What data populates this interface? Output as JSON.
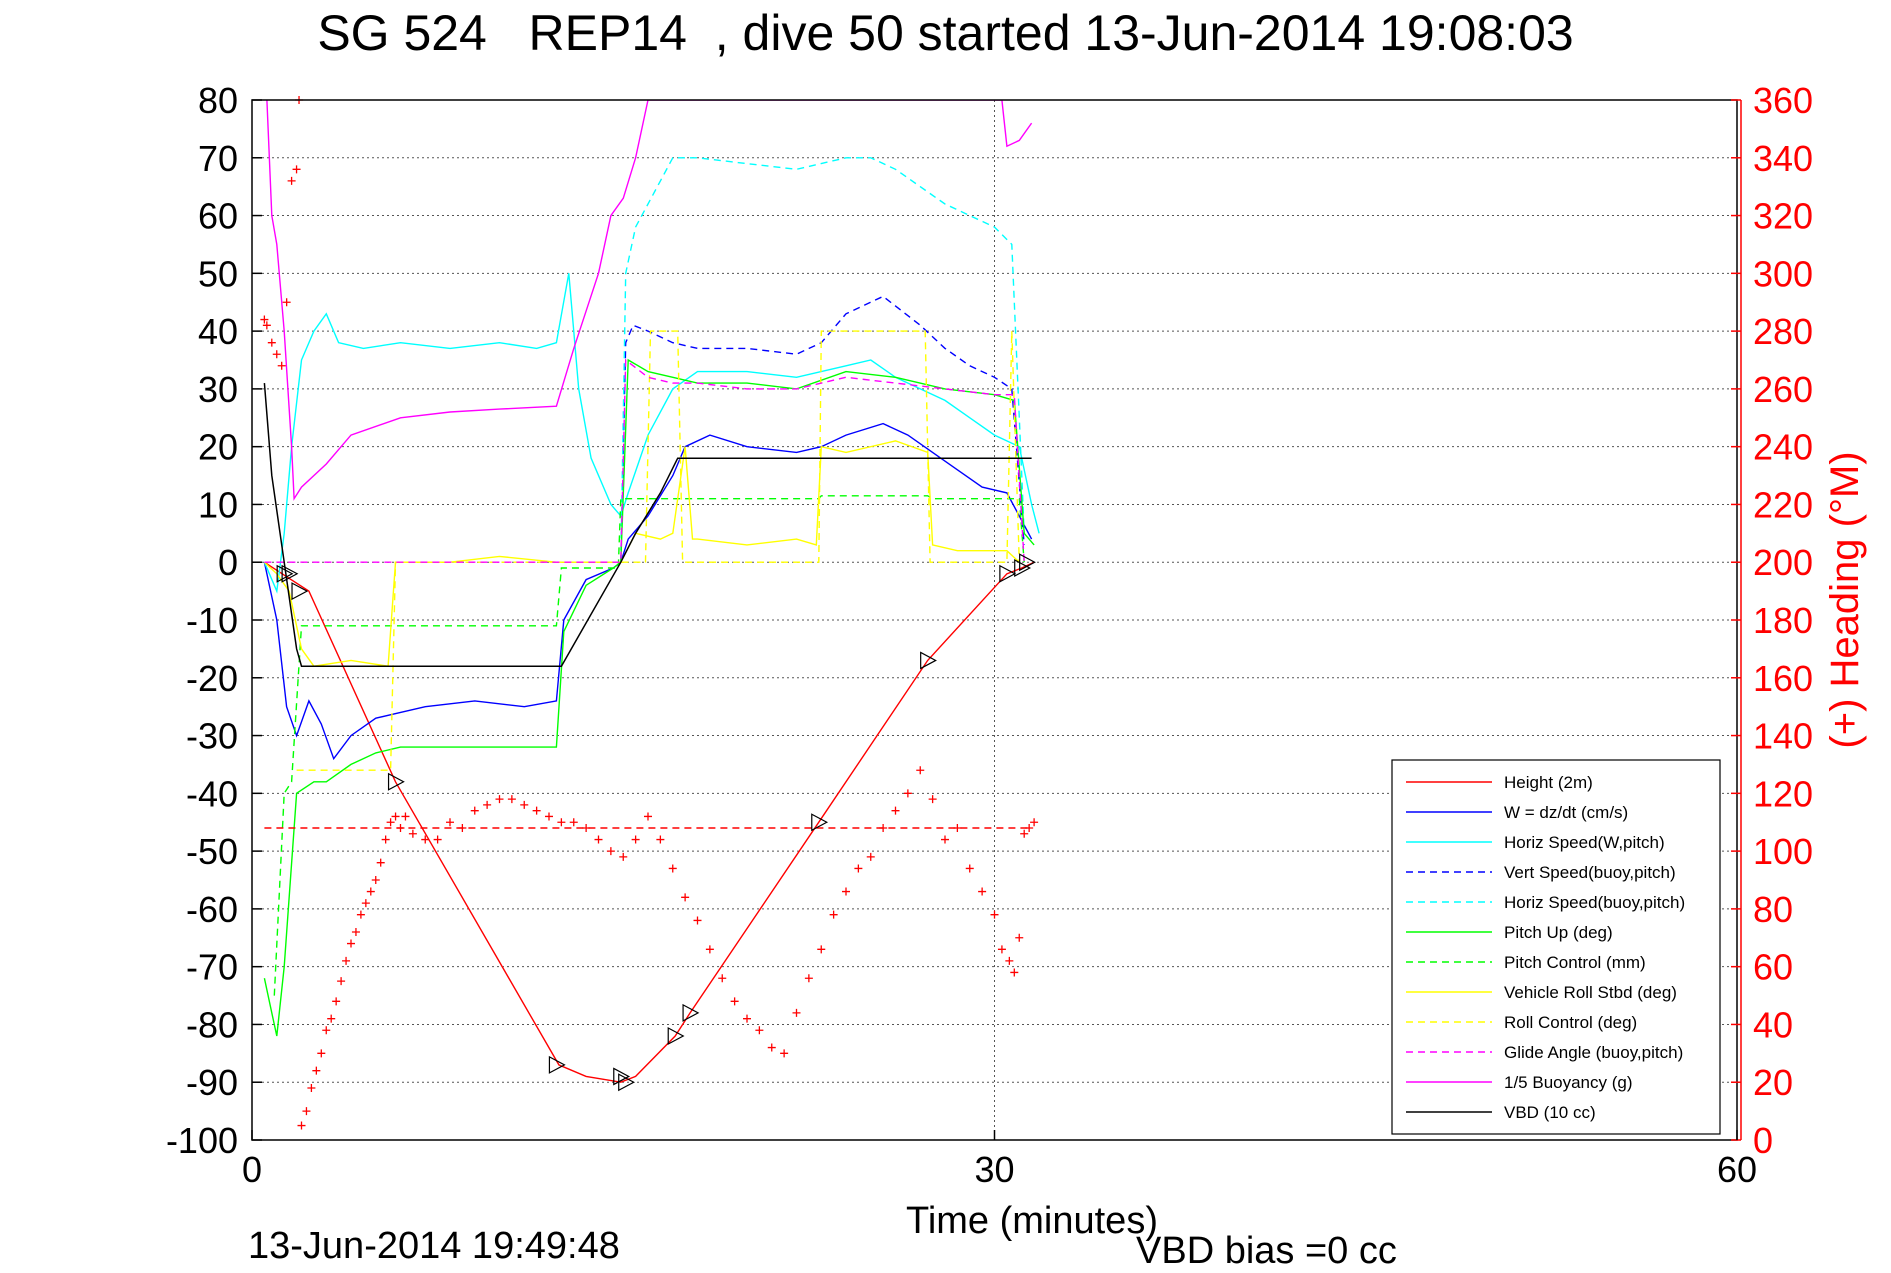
{
  "chart_data": {
    "type": "line",
    "title": "SG 524   REP14  , dive 50 started 13-Jun-2014 19:08:03",
    "xlabel": "Time (minutes)",
    "ylabel_right": "(+) Heading (°M)",
    "footer_left": "13-Jun-2014 19:49:48",
    "footer_right": "VBD bias =0 cc",
    "xlim": [
      0,
      60
    ],
    "ylim": [
      -100,
      80
    ],
    "ylim_right": [
      0,
      360
    ],
    "xticks": [
      "0",
      "30",
      "60"
    ],
    "yticks": [
      "80",
      "70",
      "60",
      "50",
      "40",
      "30",
      "20",
      "10",
      "0",
      "-10",
      "-20",
      "-30",
      "-40",
      "-50",
      "-60",
      "-70",
      "-80",
      "-90",
      "-100"
    ],
    "yticks_right": [
      "360",
      "340",
      "320",
      "300",
      "280",
      "260",
      "240",
      "220",
      "200",
      "180",
      "160",
      "140",
      "120",
      "100",
      "80",
      "60",
      "40",
      "20",
      "0"
    ],
    "grid": true,
    "legend_position": "lower-right",
    "colors": {
      "height": "#ff0000",
      "w": "#0000ff",
      "horiz_w": "#00ffff",
      "pitch": "#00ff00",
      "roll": "#ffff00",
      "glide": "#ff00ff",
      "buoyancy": "#ff00ff",
      "vbd": "#000000",
      "heading": "#ff0000"
    },
    "legend": [
      "Height (2m)",
      "W = dz/dt (cm/s)",
      "Horiz Speed(W,pitch)",
      "Vert Speed(buoy,pitch)",
      "Horiz Speed(buoy,pitch)",
      "Pitch Up (deg)",
      "Pitch Control (mm)",
      "Vehicle Roll Stbd (deg)",
      "Roll Control (deg)",
      "Glide Angle (buoy,pitch)",
      "1/5 Buoyancy (g)",
      "VBD (10 cc)"
    ],
    "series": [
      {
        "name": "Height (2m)",
        "style": "solid",
        "color": "#ff0000",
        "x": [
          0.5,
          1.4,
          2.3,
          5.8,
          12.4,
          13.5,
          14.9,
          15.5,
          17.1,
          17.7,
          22.9,
          27.3,
          30.5,
          31.1,
          31.6
        ],
        "y": [
          0,
          -2.5,
          -5,
          -38,
          -87,
          -89,
          -90,
          -89,
          -82,
          -78,
          -45,
          -17,
          -2,
          -1,
          0
        ]
      },
      {
        "name": "W = dz/dt (cm/s)",
        "style": "solid",
        "color": "#0000ff",
        "x": [
          0.5,
          1.0,
          1.4,
          1.8,
          2.3,
          2.8,
          3.3,
          4.0,
          5.0,
          6.0,
          7.0,
          9.0,
          11.0,
          12.3,
          12.6,
          13.5,
          14.6,
          14.9,
          15.2,
          16.0,
          17.0,
          17.5,
          18.5,
          20.0,
          22.0,
          23.0,
          24.0,
          25.5,
          26.5,
          27.5,
          28.5,
          29.5,
          30.5,
          31.0,
          31.5
        ],
        "y": [
          0,
          -10,
          -25,
          -30,
          -24,
          -28,
          -34,
          -30,
          -27,
          -26,
          -25,
          -24,
          -25,
          -24,
          -10,
          -3,
          -1,
          0,
          4,
          8,
          15,
          20,
          22,
          20,
          19,
          20,
          22,
          24,
          22,
          19,
          16,
          13,
          12,
          8,
          4
        ]
      },
      {
        "name": "Horiz Speed(W,pitch)",
        "style": "solid",
        "color": "#00ffff",
        "x": [
          0.5,
          1.0,
          1.3,
          1.6,
          2.0,
          2.5,
          3.0,
          3.5,
          4.5,
          6,
          8,
          10,
          11.5,
          12.3,
          12.8,
          13.2,
          13.7,
          14.5,
          14.9,
          15.2,
          16,
          17,
          18,
          20,
          22,
          24,
          25,
          26,
          27,
          28,
          29,
          30,
          31,
          31.5,
          31.8
        ],
        "y": [
          0,
          -5,
          5,
          20,
          35,
          40,
          43,
          38,
          37,
          38,
          37,
          38,
          37,
          38,
          50,
          30,
          18,
          10,
          8,
          12,
          22,
          30,
          33,
          33,
          32,
          34,
          35,
          32,
          30,
          28,
          25,
          22,
          20,
          10,
          5
        ]
      },
      {
        "name": "Vert Speed(buoy,pitch)",
        "style": "dashed",
        "color": "#0000ff",
        "x": [
          14.9,
          15.1,
          15.4,
          16,
          17,
          18,
          20,
          22,
          23,
          24,
          25.5,
          27,
          28,
          29,
          30,
          30.7,
          31.2
        ],
        "y": [
          0,
          38,
          41,
          40,
          38,
          37,
          37,
          36,
          38,
          43,
          46,
          41,
          37,
          34,
          32,
          30,
          3
        ]
      },
      {
        "name": "Horiz Speed(buoy,pitch)",
        "style": "dashed",
        "color": "#00ffff",
        "x": [
          14.9,
          15.1,
          15.5,
          16.5,
          17,
          18,
          20,
          22,
          24,
          25,
          26,
          27,
          28,
          29,
          30,
          30.7,
          31.0,
          31.2
        ],
        "y": [
          0,
          50,
          58,
          66,
          70,
          70,
          69,
          68,
          70,
          70,
          68,
          65,
          62,
          60,
          58,
          55,
          25,
          5
        ]
      },
      {
        "name": "Pitch Up (deg)",
        "style": "solid",
        "color": "#00ff00",
        "x": [
          0.5,
          0.8,
          1.0,
          1.3,
          1.8,
          2.5,
          3.0,
          4.0,
          5.0,
          6.0,
          8,
          10,
          12.3,
          12.6,
          13.5,
          14.6,
          14.9,
          15.2,
          16,
          17,
          18,
          20,
          22,
          24,
          26,
          28,
          30,
          30.8,
          31.2,
          31.6
        ],
        "y": [
          -72,
          -78,
          -82,
          -70,
          -40,
          -38,
          -38,
          -35,
          -33,
          -32,
          -32,
          -32,
          -32,
          -12,
          -4,
          -1,
          0,
          35,
          33,
          32,
          31,
          31,
          30,
          33,
          32,
          30,
          29,
          28,
          5,
          3
        ]
      },
      {
        "name": "Pitch Control (mm)",
        "style": "dashed",
        "color": "#00ff00",
        "x": [
          0.9,
          1.3,
          1.6,
          2.0,
          2.5,
          5.0,
          6.0,
          12.3,
          12.5,
          14.8,
          14.9,
          20.0,
          22.9,
          23.0,
          27.3,
          27.5,
          31.0,
          31.2
        ],
        "y": [
          -75,
          -40,
          -38,
          -11,
          -11,
          -11,
          -11,
          -11,
          -1,
          -1,
          11,
          11,
          11,
          11.5,
          11.5,
          11,
          11,
          0
        ]
      },
      {
        "name": "Vehicle Roll Stbd (deg)",
        "style": "solid",
        "color": "#ffff00",
        "x": [
          0.5,
          1.0,
          1.5,
          2.0,
          2.5,
          4.0,
          5.5,
          5.8,
          6.0,
          8,
          10,
          12.3,
          12.7,
          14.8,
          14.9,
          15.5,
          16.5,
          17.0,
          17.5,
          17.8,
          18,
          20,
          22,
          22.8,
          23,
          24,
          26,
          27.3,
          27.5,
          28.5,
          30.5,
          31
        ],
        "y": [
          0,
          -2,
          -5,
          -15,
          -18,
          -17,
          -18,
          0,
          0,
          0,
          1,
          0,
          0,
          0,
          0,
          5,
          4,
          5,
          20,
          4,
          4,
          3,
          4,
          3,
          20,
          19,
          21,
          19,
          3,
          2,
          2,
          0
        ]
      },
      {
        "name": "Roll Control (deg)",
        "style": "dashed",
        "color": "#ffff00",
        "x": [
          1.8,
          2.0,
          5.6,
          5.8,
          15.9,
          16.1,
          17.2,
          17.4,
          22.9,
          23.0,
          27.2,
          27.4,
          30.5,
          30.7,
          31.0
        ],
        "y": [
          -36,
          -36,
          -36,
          0,
          0,
          40,
          40,
          0,
          0,
          40,
          40,
          0,
          0,
          40,
          0
        ]
      },
      {
        "name": "Glide Angle (buoy,pitch)",
        "style": "dashed",
        "color": "#ff00ff",
        "x": [
          0.5,
          14.9,
          15.1,
          16,
          17,
          18,
          20,
          22,
          24,
          26,
          28,
          30,
          30.8,
          31.2
        ],
        "y": [
          0,
          0,
          35,
          32,
          31,
          31,
          30,
          30,
          32,
          31,
          30,
          29,
          29,
          0
        ]
      },
      {
        "name": "1/5 Buoyancy (g)",
        "style": "solid",
        "color": "#ff00ff",
        "x": [
          0.6,
          0.8,
          1.0,
          1.3,
          1.6,
          1.7,
          2.0,
          3.0,
          4.0,
          6.0,
          8.0,
          10.0,
          12.3,
          13.0,
          14.0,
          14.5,
          15.0,
          15.5,
          16.0,
          30.3,
          30.5,
          31.0,
          31.5
        ],
        "y": [
          80,
          60,
          55,
          40,
          20,
          11,
          13,
          17,
          22,
          25,
          26,
          26.5,
          27,
          37,
          50,
          60,
          63,
          70,
          80,
          80,
          72,
          73,
          76
        ]
      },
      {
        "name": "VBD (10 cc)",
        "style": "solid",
        "color": "#000000",
        "x": [
          0.5,
          0.8,
          1.3,
          1.8,
          2.0,
          5.0,
          8,
          12.3,
          12.5,
          14.9,
          15.5,
          16.5,
          17.2,
          20,
          25,
          30,
          31.5
        ],
        "y": [
          31,
          15,
          0,
          -15,
          -18,
          -18,
          -18,
          -18,
          -18,
          0,
          5,
          12,
          18,
          18,
          18,
          18,
          18
        ]
      },
      {
        "name": "Height marker",
        "style": "dashed",
        "color": "#ff0000",
        "x": [
          0.5,
          31.5
        ],
        "y": [
          -46,
          -46
        ]
      }
    ],
    "markers_triangles": {
      "x": [
        1.3,
        1.5,
        1.9,
        5.8,
        12.3,
        14.9,
        15.1,
        17.1,
        17.7,
        22.9,
        27.3,
        30.5,
        31.1,
        31.3
      ],
      "y": [
        -2,
        -2,
        -5,
        -38,
        -87,
        -89,
        -90,
        -82,
        -78,
        -45,
        -17,
        -2,
        -1,
        0
      ]
    },
    "heading_scatter": {
      "x": [
        0.5,
        0.6,
        0.8,
        1.0,
        1.2,
        1.4,
        1.6,
        1.8,
        1.9,
        2.0,
        2.2,
        2.4,
        2.6,
        2.8,
        3.0,
        3.2,
        3.4,
        3.6,
        3.8,
        4.0,
        4.2,
        4.4,
        4.6,
        4.8,
        5.0,
        5.2,
        5.4,
        5.6,
        5.8,
        6.0,
        6.2,
        6.5,
        7.0,
        7.5,
        8.0,
        8.5,
        9.0,
        9.5,
        10.0,
        10.5,
        11.0,
        11.5,
        12.0,
        12.5,
        13.0,
        13.5,
        14.0,
        14.5,
        15.0,
        15.5,
        16.0,
        16.5,
        17.0,
        17.5,
        18.0,
        18.5,
        19.0,
        19.5,
        20.0,
        20.5,
        21.0,
        21.5,
        22.0,
        22.5,
        23.0,
        23.5,
        24.0,
        24.5,
        25.0,
        25.5,
        26.0,
        26.5,
        27.0,
        27.5,
        28.0,
        28.5,
        29.0,
        29.5,
        30.0,
        30.3,
        30.6,
        30.8,
        31.0,
        31.2,
        31.4,
        31.6
      ],
      "y": [
        284,
        282,
        276,
        272,
        268,
        290,
        332,
        336,
        360,
        5,
        10,
        18,
        24,
        30,
        38,
        42,
        48,
        55,
        62,
        68,
        72,
        78,
        82,
        86,
        90,
        96,
        104,
        110,
        112,
        108,
        112,
        106,
        104,
        104,
        110,
        108,
        114,
        116,
        118,
        118,
        116,
        114,
        112,
        110,
        110,
        108,
        104,
        100,
        98,
        104,
        112,
        104,
        94,
        84,
        76,
        66,
        56,
        48,
        42,
        38,
        32,
        30,
        44,
        56,
        66,
        78,
        86,
        94,
        98,
        108,
        114,
        120,
        128,
        118,
        104,
        108,
        94,
        86,
        78,
        66,
        62,
        58,
        70,
        106,
        108,
        110
      ]
    }
  }
}
